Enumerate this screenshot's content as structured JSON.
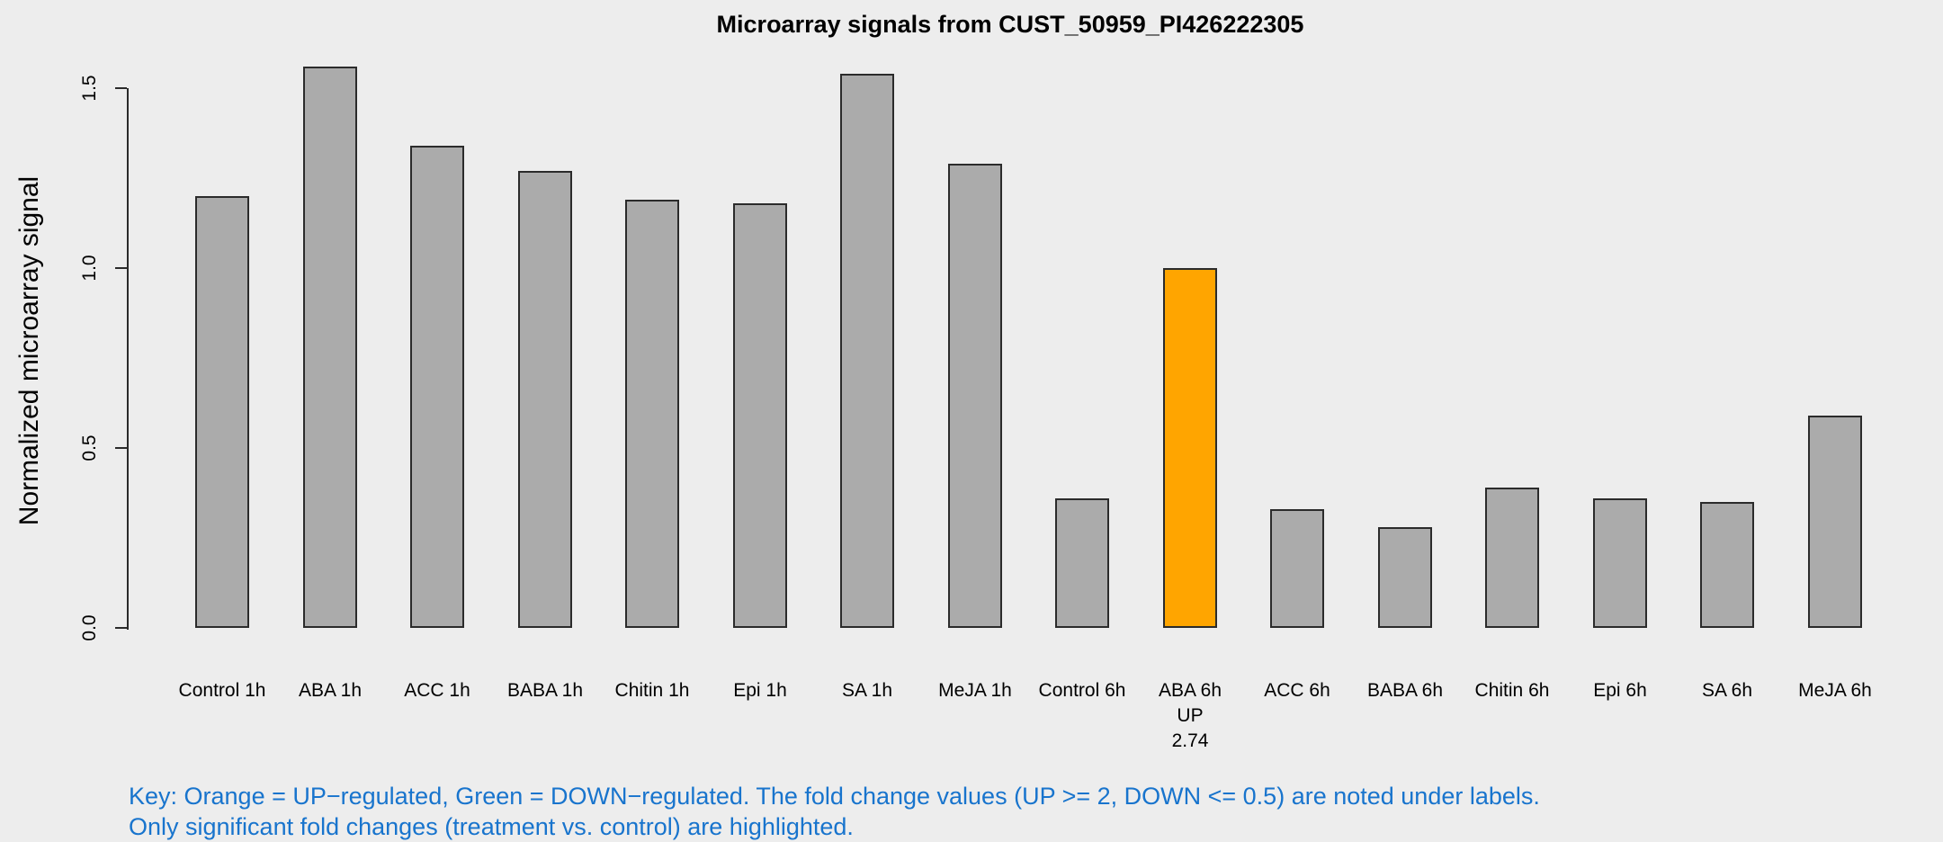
{
  "chart_data": {
    "type": "bar",
    "title": "Microarray signals from CUST_50959_PI426222305",
    "xlabel": "",
    "ylabel": "Normalized microarray signal",
    "categories": [
      "Control 1h",
      "ABA 1h",
      "ACC 1h",
      "BABA 1h",
      "Chitin 1h",
      "Epi 1h",
      "SA 1h",
      "MeJA 1h",
      "Control 6h",
      "ABA 6h",
      "ACC 6h",
      "BABA 6h",
      "Chitin 6h",
      "Epi 6h",
      "SA 6h",
      "MeJA 6h"
    ],
    "values": [
      1.2,
      1.56,
      1.34,
      1.27,
      1.19,
      1.18,
      1.54,
      1.29,
      0.36,
      1.0,
      0.33,
      0.28,
      0.39,
      0.36,
      0.35,
      0.59
    ],
    "bar_sublabels": [
      [],
      [],
      [],
      [],
      [],
      [],
      [],
      [],
      [],
      [
        "UP",
        "2.74"
      ],
      [],
      [],
      [],
      [],
      [],
      []
    ],
    "bar_colors": [
      "#ABABAB",
      "#ABABAB",
      "#ABABAB",
      "#ABABAB",
      "#ABABAB",
      "#ABABAB",
      "#ABABAB",
      "#ABABAB",
      "#ABABAB",
      "#FFA500",
      "#ABABAB",
      "#ABABAB",
      "#ABABAB",
      "#ABABAB",
      "#ABABAB",
      "#ABABAB"
    ],
    "highlighted_bars": [
      {
        "index": 9,
        "category": "ABA 6h",
        "direction": "UP",
        "fold_change": "2.74"
      }
    ],
    "yticks": [
      0.0,
      0.5,
      1.0,
      1.5
    ],
    "ytick_labels": [
      "0.0",
      "0.5",
      "1.0",
      "1.5"
    ],
    "ylim": [
      0,
      1.58
    ],
    "grid": false,
    "legend_position": "none"
  },
  "key": {
    "line1": "Key: Orange = UP−regulated, Green = DOWN−regulated. The fold change values (UP >= 2, DOWN <= 0.5) are noted under labels.",
    "line2": "Only significant fold changes (treatment vs. control) are highlighted."
  },
  "colors": {
    "background": "#EDEDED",
    "default_bar": "#ABABAB",
    "up_bar": "#FFA500",
    "bar_border": "#2b2b2b",
    "axis": "#2b2b2b",
    "text": "#000000",
    "key_text": "#1874CD"
  }
}
